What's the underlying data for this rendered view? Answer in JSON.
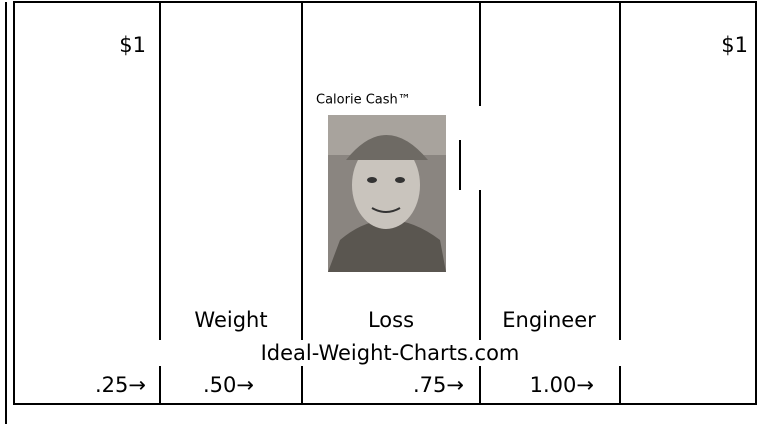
{
  "bill": {
    "denominations": [
      "$1",
      "$1"
    ],
    "brand": "Calorie Cash™",
    "words": [
      "Weight",
      "Loss",
      "Engineer"
    ],
    "website": "Ideal-Weight-Charts.com",
    "fractions": [
      ".25→",
      ".50→",
      ".75→",
      "1.00→"
    ]
  }
}
